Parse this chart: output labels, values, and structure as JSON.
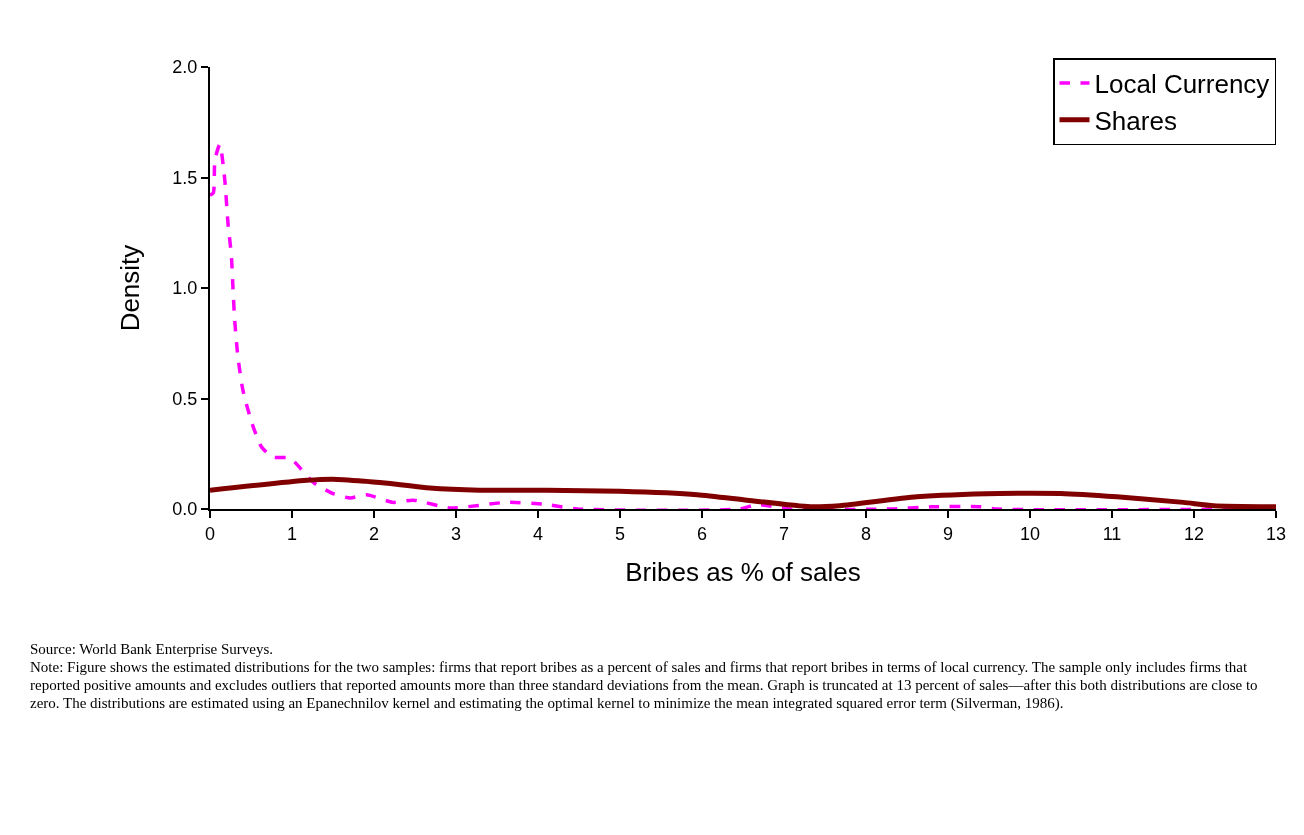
{
  "chart_data": {
    "type": "line",
    "xlabel": "Bribes as % of sales",
    "ylabel": "Density",
    "xlim": [
      0,
      13
    ],
    "xticks": [
      0,
      1,
      2,
      3,
      4,
      5,
      6,
      7,
      8,
      9,
      10,
      11,
      12,
      13
    ],
    "ylim": [
      0,
      2
    ],
    "yticks": [
      {
        "value": 0,
        "label": "0.0"
      },
      {
        "value": 0.5,
        "label": "0.5"
      },
      {
        "value": 1,
        "label": "1.0"
      },
      {
        "value": 1.5,
        "label": "1.5"
      },
      {
        "value": 2,
        "label": "2.0"
      }
    ],
    "grid": false,
    "legend": "top right",
    "marker": "none",
    "series": [
      {
        "name": "Local Currency",
        "color": "#ff00ff",
        "line_style": "dashed",
        "x": [
          0,
          0.04,
          0.06,
          0.12,
          0.18,
          0.22,
          0.26,
          0.28,
          0.3,
          0.34,
          0.4,
          0.51,
          0.63,
          0.77,
          0.98,
          1.1,
          1.26,
          1.5,
          1.71,
          1.91,
          2.23,
          2.48,
          2.93,
          3.62,
          4.11,
          4.48,
          6.46,
          6.67,
          7.07,
          8.3,
          8.8,
          9.4,
          9.6,
          13
        ],
        "values": [
          1.42,
          1.43,
          1.58,
          1.65,
          1.49,
          1.29,
          1.15,
          1.0,
          0.86,
          0.69,
          0.54,
          0.39,
          0.28,
          0.235,
          0.23,
          0.185,
          0.12,
          0.07,
          0.05,
          0.065,
          0.03,
          0.04,
          0.005,
          0.03,
          0.02,
          0,
          0,
          0.02,
          0,
          0,
          0.01,
          0.01,
          0,
          0
        ]
      },
      {
        "name": "Shares",
        "color": "#800000",
        "line_style": "solid",
        "x": [
          0,
          1.18,
          1.5,
          1.91,
          2.07,
          2.32,
          2.68,
          3.29,
          4.11,
          5.0,
          5.94,
          6.55,
          7.32,
          7.68,
          8.62,
          9.63,
          10.37,
          11.06,
          11.87,
          12.24,
          13
        ],
        "values": [
          0.085,
          0.13,
          0.135,
          0.125,
          0.12,
          0.11,
          0.095,
          0.085,
          0.085,
          0.08,
          0.065,
          0.04,
          0.01,
          0.015,
          0.055,
          0.07,
          0.07,
          0.055,
          0.03,
          0.015,
          0.01
        ]
      }
    ],
    "annotations": [
      "Source: World Bank Enterprise Surveys.",
      "Note: Figure shows the estimated distributions for the two samples: firms that report bribes as a percent of sales and firms that report bribes in terms of local currency.  The sample only includes firms that reported positive amounts and excludes outliers that reported amounts more than three standard deviations from the mean.  Graph is truncated at 13 percent of sales—after this both distributions are close to zero.  The distributions are estimated using an Epanechnilov kernel and estimating the optimal kernel to minimize the mean integrated squared error term (Silverman, 1986)."
    ]
  }
}
